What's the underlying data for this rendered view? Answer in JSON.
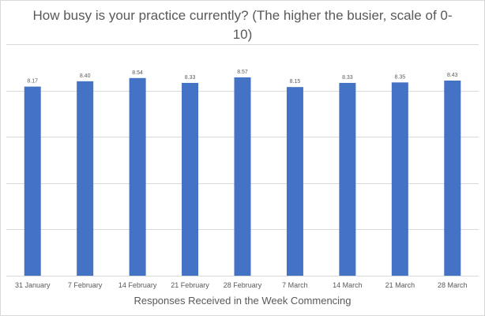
{
  "chart_data": {
    "type": "bar",
    "title": "How busy is your practice currently?  (The higher the busier, scale of 0-10)",
    "xlabel": "Responses Received in the Week Commencing",
    "ylabel": "",
    "ylim": [
      0,
      10
    ],
    "grid": true,
    "legend": "none",
    "bar_color": "#4472C4",
    "categories": [
      "31 January",
      "7 February",
      "14 February",
      "21 February",
      "28 February",
      "7 March",
      "14 March",
      "21 March",
      "28 March"
    ],
    "values": [
      8.17,
      8.4,
      8.54,
      8.33,
      8.57,
      8.15,
      8.33,
      8.35,
      8.43
    ],
    "data_labels": [
      "8.17",
      "8.40",
      "8.54",
      "8.33",
      "8.57",
      "8.15",
      "8.33",
      "8.35",
      "8.43"
    ]
  }
}
